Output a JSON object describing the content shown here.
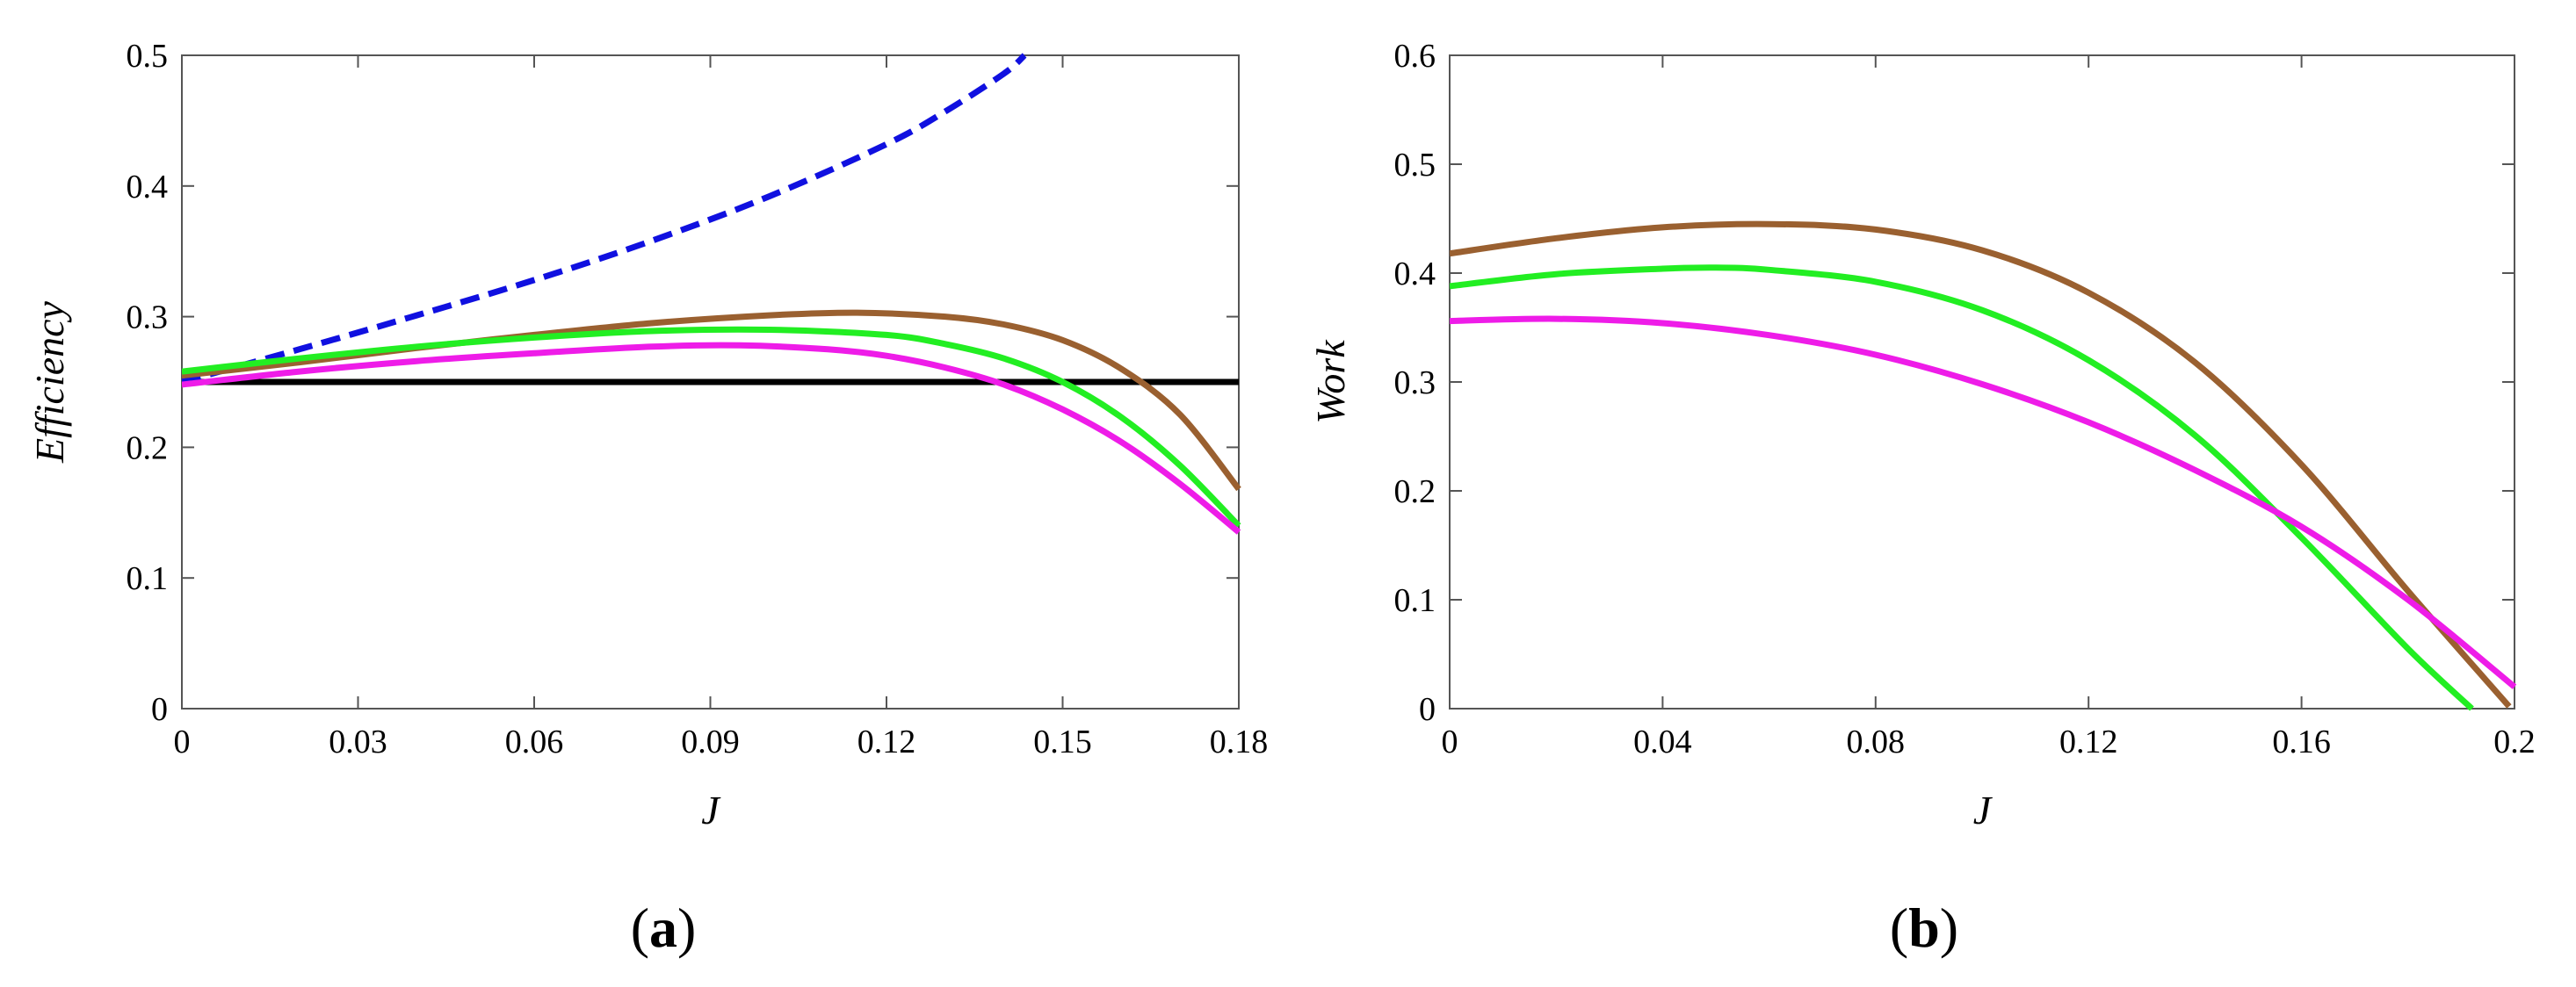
{
  "chart_data": [
    {
      "type": "line",
      "panel_label": "a",
      "xlabel": "J",
      "ylabel": "Efficiency",
      "xlim": [
        0,
        0.18
      ],
      "ylim": [
        0,
        0.5
      ],
      "xticks": [
        "0",
        "0.03",
        "0.06",
        "0.09",
        "0.12",
        "0.15",
        "0.18"
      ],
      "yticks": [
        "0",
        "0.1",
        "0.2",
        "0.3",
        "0.4",
        "0.5"
      ],
      "series": [
        {
          "name": "dashed-blue",
          "color": "#1010e0",
          "dash": true,
          "x": [
            0,
            0.02,
            0.04,
            0.06,
            0.08,
            0.1,
            0.12,
            0.13,
            0.14,
            0.1435
          ],
          "y": [
            0.25,
            0.275,
            0.301,
            0.328,
            0.358,
            0.392,
            0.432,
            0.457,
            0.486,
            0.5
          ]
        },
        {
          "name": "brown",
          "color": "#9a6030",
          "dash": false,
          "x": [
            0,
            0.02,
            0.04,
            0.06,
            0.08,
            0.1,
            0.115,
            0.13,
            0.14,
            0.15,
            0.16,
            0.17,
            0.18
          ],
          "y": [
            0.255,
            0.265,
            0.276,
            0.286,
            0.295,
            0.301,
            0.303,
            0.3,
            0.294,
            0.282,
            0.26,
            0.225,
            0.168
          ]
        },
        {
          "name": "green",
          "color": "#22ee22",
          "dash": false,
          "x": [
            0,
            0.02,
            0.04,
            0.06,
            0.08,
            0.1,
            0.12,
            0.13,
            0.14,
            0.15,
            0.16,
            0.17,
            0.18
          ],
          "y": [
            0.258,
            0.268,
            0.277,
            0.284,
            0.289,
            0.29,
            0.286,
            0.279,
            0.268,
            0.25,
            0.223,
            0.186,
            0.14
          ]
        },
        {
          "name": "magenta",
          "color": "#ee1ce8",
          "dash": false,
          "x": [
            0,
            0.02,
            0.04,
            0.06,
            0.08,
            0.095,
            0.11,
            0.12,
            0.13,
            0.14,
            0.15,
            0.16,
            0.17,
            0.18
          ],
          "y": [
            0.248,
            0.258,
            0.266,
            0.272,
            0.277,
            0.278,
            0.275,
            0.27,
            0.261,
            0.248,
            0.229,
            0.204,
            0.172,
            0.135
          ]
        },
        {
          "name": "black",
          "color": "#000000",
          "dash": false,
          "x": [
            0,
            0.18
          ],
          "y": [
            0.25,
            0.25
          ]
        }
      ]
    },
    {
      "type": "line",
      "panel_label": "b",
      "xlabel": "J",
      "ylabel": "Work",
      "xlim": [
        0,
        0.2
      ],
      "ylim": [
        0,
        0.6
      ],
      "xticks": [
        "0",
        "0.04",
        "0.08",
        "0.12",
        "0.16",
        "0.2"
      ],
      "yticks": [
        "0",
        "0.1",
        "0.2",
        "0.3",
        "0.4",
        "0.5",
        "0.6"
      ],
      "series": [
        {
          "name": "brown",
          "color": "#9a6030",
          "dash": false,
          "x": [
            0,
            0.02,
            0.04,
            0.06,
            0.08,
            0.1,
            0.12,
            0.14,
            0.16,
            0.18,
            0.199
          ],
          "y": [
            0.418,
            0.432,
            0.442,
            0.445,
            0.44,
            0.421,
            0.382,
            0.318,
            0.224,
            0.108,
            0.002
          ]
        },
        {
          "name": "green",
          "color": "#22ee22",
          "dash": false,
          "x": [
            0,
            0.02,
            0.04,
            0.05,
            0.06,
            0.08,
            0.1,
            0.12,
            0.14,
            0.16,
            0.18,
            0.192
          ],
          "y": [
            0.388,
            0.399,
            0.404,
            0.405,
            0.403,
            0.392,
            0.366,
            0.32,
            0.251,
            0.157,
            0.055,
            0.0
          ]
        },
        {
          "name": "magenta",
          "color": "#ee1ce8",
          "dash": false,
          "x": [
            0,
            0.02,
            0.04,
            0.06,
            0.08,
            0.1,
            0.12,
            0.14,
            0.16,
            0.18,
            0.2
          ],
          "y": [
            0.356,
            0.358,
            0.354,
            0.343,
            0.325,
            0.298,
            0.263,
            0.219,
            0.167,
            0.1,
            0.02
          ]
        }
      ]
    }
  ]
}
